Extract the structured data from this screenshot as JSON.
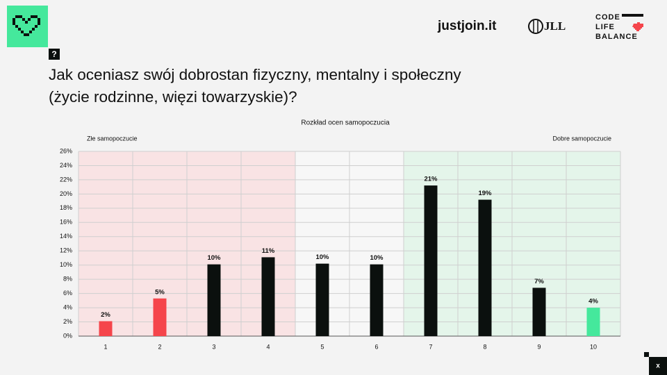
{
  "header": {
    "logos": [
      "justjoin.it",
      "JLL"
    ],
    "brand_lines": [
      "CODE",
      "LIFE",
      "BALANCE"
    ],
    "question_icon": "?",
    "title_lines": [
      "Jak oceniasz swój dobrostan fizyczny, mentalny i społeczny",
      "(życie rodzinne, więzi towarzyskie)?"
    ]
  },
  "chart_data": {
    "type": "bar",
    "title": "Rozkład ocen samopoczucia",
    "annotations": [
      "Złe samopoczucie",
      "Dobre samopoczucie"
    ],
    "categories": [
      "1",
      "2",
      "3",
      "4",
      "5",
      "6",
      "7",
      "8",
      "9",
      "10"
    ],
    "values": [
      2.1,
      5.3,
      10.1,
      11.1,
      10.2,
      10.1,
      21.2,
      19.2,
      6.8,
      4.0
    ],
    "value_labels": [
      "2%",
      "5%",
      "10%",
      "11%",
      "10%",
      "10%",
      "21%",
      "19%",
      "7%",
      "4%"
    ],
    "colors": [
      "#f5454b",
      "#f5454b",
      "#0b100e",
      "#0b100e",
      "#0b100e",
      "#0b100e",
      "#0b100e",
      "#0b100e",
      "#0b100e",
      "#45e89c"
    ],
    "ylim": [
      0,
      26
    ],
    "yticks": [
      {
        "value": 0,
        "label": "0%"
      },
      {
        "value": 2,
        "label": "2%"
      },
      {
        "value": 4,
        "label": "4%"
      },
      {
        "value": 6,
        "label": "6%"
      },
      {
        "value": 8,
        "label": "8%"
      },
      {
        "value": 10,
        "label": "10%"
      },
      {
        "value": 12,
        "label": "12%"
      },
      {
        "value": 14,
        "label": "14%"
      },
      {
        "value": 16,
        "label": "16%"
      },
      {
        "value": 18,
        "label": "18%"
      },
      {
        "value": 20,
        "label": "20%"
      },
      {
        "value": 22,
        "label": "22%"
      },
      {
        "value": 24,
        "label": "24%"
      },
      {
        "value": 26,
        "label": "26%"
      }
    ],
    "grid": true
  },
  "footer": {
    "close_label": "x"
  }
}
